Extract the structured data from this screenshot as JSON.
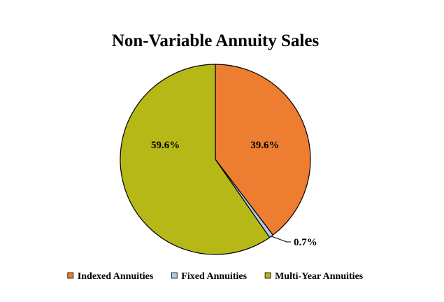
{
  "chart_data": {
    "type": "pie",
    "title": "Non-Variable Annuity Sales",
    "legend_position": "bottom",
    "slices": [
      {
        "name": "Indexed Annuities",
        "value": 39.6,
        "label": "39.6%",
        "color": "#ed7d31"
      },
      {
        "name": "Fixed Annuities",
        "value": 0.7,
        "label": "0.7%",
        "color": "#b4c7e7"
      },
      {
        "name": "Multi-Year Annuities",
        "value": 59.6,
        "label": "59.6%",
        "color": "#b5b817"
      }
    ]
  }
}
